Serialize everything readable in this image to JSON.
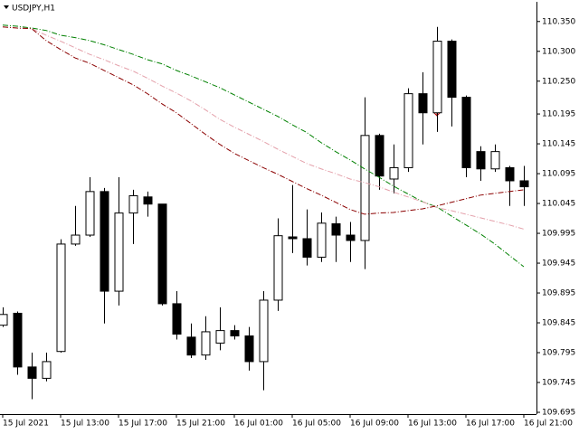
{
  "chart_data": {
    "type": "candlestick",
    "title": "USDJPY,H1",
    "categories": [
      "15 Jul 2021",
      null,
      null,
      null,
      "15 Jul 13:00",
      null,
      null,
      null,
      "15 Jul 17:00",
      null,
      null,
      null,
      "15 Jul 21:00",
      null,
      null,
      null,
      "16 Jul 01:00",
      null,
      null,
      null,
      "16 Jul 05:00",
      null,
      null,
      null,
      "16 Jul 09:00",
      null,
      null,
      null,
      "16 Jul 13:00",
      null,
      null,
      null,
      "16 Jul 17:00",
      null,
      null,
      null,
      "16 Jul 21:00"
    ],
    "open": [
      109.841,
      109.861,
      109.771,
      109.752,
      109.797,
      109.977,
      109.992,
      110.065,
      109.898,
      110.029,
      110.056,
      110.044,
      109.877,
      109.821,
      109.791,
      109.811,
      109.832,
      109.823,
      109.78,
      109.883,
      109.989,
      109.986,
      109.955,
      110.011,
      109.992,
      109.983,
      110.159,
      110.086,
      110.105,
      110.229,
      110.197,
      110.317,
      110.223,
      110.132,
      110.103,
      110.105,
      110.083
    ],
    "high": [
      109.871,
      109.864,
      109.795,
      109.795,
      109.985,
      110.041,
      110.089,
      110.071,
      110.089,
      110.068,
      110.065,
      110.044,
      109.898,
      109.844,
      109.856,
      109.871,
      109.841,
      109.838,
      109.898,
      110.02,
      110.076,
      110.035,
      110.03,
      110.023,
      110.014,
      110.223,
      110.162,
      110.144,
      110.238,
      110.265,
      110.341,
      110.32,
      110.226,
      110.141,
      110.144,
      110.108,
      110.108
    ],
    "low": [
      109.838,
      109.758,
      109.717,
      109.747,
      109.795,
      109.974,
      109.989,
      109.844,
      109.874,
      109.977,
      110.023,
      109.874,
      109.817,
      109.786,
      109.783,
      109.799,
      109.817,
      109.765,
      109.732,
      109.865,
      109.962,
      109.941,
      109.947,
      109.947,
      109.947,
      109.935,
      110.068,
      110.062,
      110.098,
      110.144,
      110.165,
      110.174,
      110.089,
      110.083,
      110.098,
      110.041,
      110.041
    ],
    "close": [
      109.859,
      109.771,
      109.752,
      109.78,
      109.977,
      109.992,
      110.065,
      109.898,
      110.029,
      110.058,
      110.044,
      109.877,
      109.826,
      109.791,
      109.83,
      109.832,
      109.823,
      109.78,
      109.883,
      109.991,
      109.986,
      109.955,
      110.012,
      109.992,
      109.983,
      110.159,
      110.091,
      110.105,
      110.229,
      110.197,
      110.317,
      110.223,
      110.105,
      110.103,
      110.132,
      110.083,
      110.073
    ],
    "up_color": "#ffffff",
    "down_color": "#000000",
    "overlays": [
      {
        "color": "#008000",
        "values": [
          110.344,
          110.342,
          110.339,
          110.335,
          110.327,
          110.323,
          110.318,
          110.311,
          110.303,
          110.295,
          110.286,
          110.279,
          110.268,
          110.259,
          110.249,
          110.239,
          110.227,
          110.215,
          110.203,
          110.191,
          110.177,
          110.164,
          110.147,
          110.132,
          110.118,
          110.103,
          110.089,
          110.074,
          110.061,
          110.048,
          110.039,
          110.024,
          110.009,
          109.994,
          109.977,
          109.958,
          109.939
        ]
      },
      {
        "color": "#e4a0aa",
        "values": [
          110.341,
          110.339,
          110.338,
          110.327,
          110.317,
          110.306,
          110.295,
          110.286,
          110.276,
          110.267,
          110.255,
          110.242,
          110.23,
          110.217,
          110.202,
          110.186,
          110.173,
          110.161,
          110.149,
          110.136,
          110.124,
          110.112,
          110.103,
          110.095,
          110.086,
          110.08,
          110.073,
          110.064,
          110.056,
          110.048,
          110.038,
          110.033,
          110.027,
          110.021,
          110.015,
          110.009,
          110.002
        ]
      },
      {
        "color": "#8b0000",
        "values": [
          110.341,
          110.339,
          110.338,
          110.318,
          110.303,
          110.289,
          110.28,
          110.268,
          110.256,
          110.244,
          110.229,
          110.212,
          110.197,
          110.179,
          110.161,
          110.144,
          110.129,
          110.117,
          110.105,
          110.094,
          110.082,
          110.07,
          110.059,
          110.047,
          110.035,
          110.027,
          110.029,
          110.03,
          110.033,
          110.036,
          110.041,
          110.047,
          110.053,
          110.059,
          110.062,
          110.065,
          110.068
        ]
      }
    ],
    "ylim": [
      109.692,
      110.383
    ],
    "yticks": [
      {
        "value": 110.35,
        "label": "110.350"
      },
      {
        "value": 110.3,
        "label": "110.300"
      },
      {
        "value": 110.25,
        "label": "110.250"
      },
      {
        "value": 110.195,
        "label": "110.195"
      },
      {
        "value": 110.145,
        "label": "110.145"
      },
      {
        "value": 110.095,
        "label": "110.095"
      },
      {
        "value": 110.045,
        "label": "110.045"
      },
      {
        "value": 109.995,
        "label": "109.995"
      },
      {
        "value": 109.945,
        "label": "109.945"
      },
      {
        "value": 109.895,
        "label": "109.895"
      },
      {
        "value": 109.845,
        "label": "109.845"
      },
      {
        "value": 109.795,
        "label": "109.795"
      },
      {
        "value": 109.745,
        "label": "109.745"
      },
      {
        "value": 109.695,
        "label": "109.695"
      }
    ],
    "grid": false
  }
}
